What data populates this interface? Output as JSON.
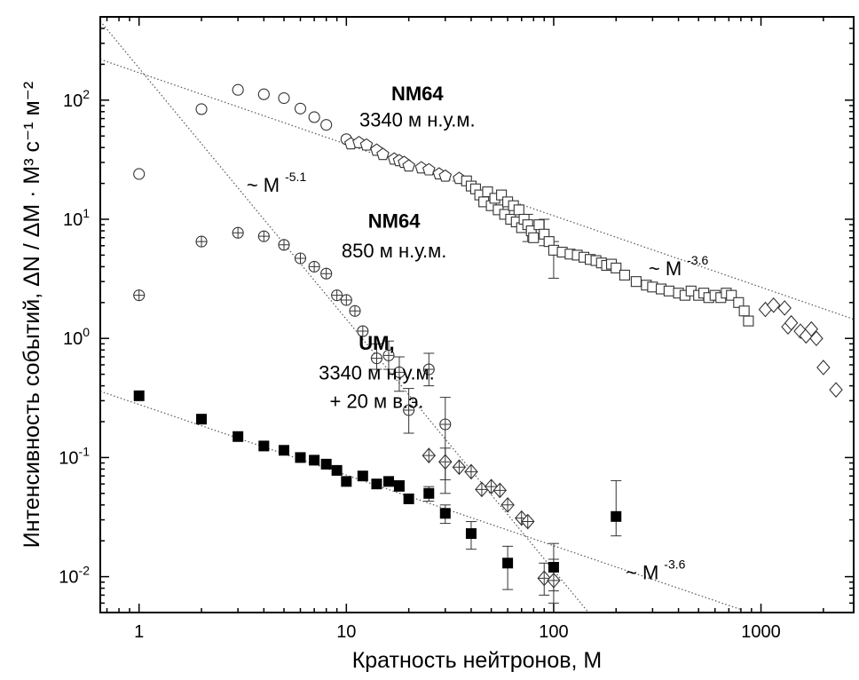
{
  "chart_data": {
    "type": "scatter",
    "title": "",
    "xlabel": "Кратность нейтронов,   M",
    "ylabel": "Интенсивность событий, ΔN / ΔM · M³ с⁻¹ м⁻²",
    "x_scale": "log",
    "y_scale": "log",
    "xlim": [
      0.65,
      2800
    ],
    "ylim": [
      0.005,
      500
    ],
    "grid": false,
    "x_ticks": [
      {
        "value": 1,
        "label": "1"
      },
      {
        "value": 10,
        "label": "10"
      },
      {
        "value": 100,
        "label": "100"
      },
      {
        "value": 1000,
        "label": "1000"
      }
    ],
    "y_ticks": [
      {
        "value": 100,
        "base": "10",
        "exp": "2"
      },
      {
        "value": 10,
        "base": "10",
        "exp": "1"
      },
      {
        "value": 1,
        "base": "10",
        "exp": "0"
      },
      {
        "value": 0.1,
        "base": "10",
        "exp": "-1"
      },
      {
        "value": 0.01,
        "base": "10",
        "exp": "-2"
      }
    ],
    "annotations": [
      {
        "id": "nm64-high-name",
        "text": "NM64",
        "bold": true,
        "x": 22,
        "y": 100
      },
      {
        "id": "nm64-high-alt",
        "text": "3340 м н.у.м.",
        "bold": false,
        "x": 22,
        "y": 60
      },
      {
        "id": "nm64-low-name",
        "text": "NM64",
        "bold": true,
        "x": 17,
        "y": 8.5
      },
      {
        "id": "nm64-low-alt",
        "text": "850 м н.у.м.",
        "bold": false,
        "x": 17,
        "y": 4.8
      },
      {
        "id": "um-name",
        "text": "UM,",
        "bold": true,
        "x": 14,
        "y": 0.8
      },
      {
        "id": "um-alt",
        "text": "3340 м  н.у.м.",
        "bold": false,
        "x": 14,
        "y": 0.45
      },
      {
        "id": "um-depth",
        "text": "+ 20 м в.э.",
        "bold": false,
        "x": 14,
        "y": 0.26
      }
    ],
    "power_labels": [
      {
        "id": "slope-51",
        "base": "~ M",
        "exp": "-5.1",
        "x": 4.6,
        "y": 17
      },
      {
        "id": "slope-36-upper",
        "base": "~ M",
        "exp": "-3.6",
        "x": 400,
        "y": 3.4
      },
      {
        "id": "slope-36-lower",
        "base": "~ M",
        "exp": "-3.6",
        "x": 310,
        "y": 0.0095
      }
    ],
    "fit_lines": [
      {
        "name": "",
        "x": [
          0.65,
          2800
        ],
        "y": [
          220,
          1.45
        ]
      },
      {
        "name": "",
        "x": [
          0.65,
          160
        ],
        "y": [
          460,
          0.0042
        ]
      },
      {
        "name": "",
        "x": [
          0.65,
          800
        ],
        "y": [
          0.36,
          0.0053
        ]
      }
    ],
    "series": [
      {
        "name": "",
        "marker": "circle-open",
        "x": [
          1,
          2,
          3,
          4,
          5,
          6,
          7,
          8,
          10
        ],
        "y": [
          24,
          84,
          122,
          112,
          104,
          85,
          72,
          62,
          47
        ],
        "yerr": []
      },
      {
        "name": "",
        "marker": "pentagon-open",
        "x": [
          10.5,
          11.5,
          12.5,
          14,
          15,
          17,
          18,
          19,
          20,
          23,
          25,
          28,
          30,
          35
        ],
        "y": [
          43,
          44,
          42,
          38,
          35,
          32,
          31,
          30,
          28,
          27,
          26,
          24,
          23,
          22
        ],
        "yerr": []
      },
      {
        "name": "",
        "marker": "square-open",
        "x": [
          38,
          40,
          42,
          44,
          46,
          48,
          50,
          52,
          54,
          56,
          58,
          60,
          62,
          64,
          66,
          68,
          70,
          72,
          75,
          78,
          80,
          85,
          90,
          95,
          100,
          110,
          120,
          130,
          140,
          150,
          160,
          170,
          180,
          190,
          200,
          220,
          250,
          280,
          300,
          330,
          360,
          400,
          430,
          460,
          500,
          530,
          560,
          600,
          640,
          680,
          720,
          780,
          830,
          870
        ],
        "y": [
          21,
          19,
          18,
          16,
          14,
          17,
          13,
          15,
          12,
          16,
          11,
          14,
          10,
          13,
          9.5,
          12,
          8.5,
          10,
          9,
          8,
          7,
          9,
          7.5,
          6.5,
          5.5,
          5.3,
          5.1,
          5,
          4.8,
          4.6,
          4.5,
          4.3,
          4.1,
          4.2,
          3.9,
          3.4,
          3.0,
          2.8,
          2.7,
          2.6,
          2.5,
          2.4,
          2.3,
          2.5,
          2.3,
          2.4,
          2.2,
          2.3,
          2.2,
          2.4,
          2.3,
          2.0,
          1.7,
          1.4
        ],
        "yerr": [
          {
            "x": 100,
            "lo": 3.2,
            "hi": 6.5
          },
          {
            "x": 75,
            "lo": 6.5,
            "hi": 11
          },
          {
            "x": 90,
            "lo": 6,
            "hi": 10
          }
        ]
      },
      {
        "name": "",
        "marker": "diamond-open",
        "x": [
          1050,
          1150,
          1300,
          1350,
          1400,
          1550,
          1650,
          1750,
          1850,
          2000,
          2300
        ],
        "y": [
          1.75,
          1.9,
          1.8,
          1.25,
          1.35,
          1.15,
          1.05,
          1.2,
          1.0,
          0.57,
          0.37
        ],
        "yerr": []
      },
      {
        "name": "",
        "marker": "circle-plus",
        "x": [
          1,
          2,
          3,
          4,
          5,
          6,
          7,
          8,
          9,
          10,
          11,
          12,
          14,
          16,
          18,
          20,
          25,
          30
        ],
        "y": [
          2.3,
          6.5,
          7.7,
          7.2,
          6.1,
          4.7,
          4.0,
          3.5,
          2.3,
          2.1,
          1.7,
          1.15,
          0.68,
          0.72,
          0.52,
          0.25,
          0.55,
          0.19
        ],
        "yerr": [
          {
            "x": 14,
            "lo": 0.55,
            "hi": 0.9
          },
          {
            "x": 16,
            "lo": 0.55,
            "hi": 0.95
          },
          {
            "x": 18,
            "lo": 0.36,
            "hi": 0.7
          },
          {
            "x": 20,
            "lo": 0.16,
            "hi": 0.38
          },
          {
            "x": 25,
            "lo": 0.4,
            "hi": 0.75
          },
          {
            "x": 30,
            "lo": 0.05,
            "hi": 0.32
          }
        ]
      },
      {
        "name": "",
        "marker": "diamond-plus",
        "x": [
          25,
          30,
          35,
          40,
          45,
          50,
          55,
          60,
          70,
          75,
          90,
          100
        ],
        "y": [
          0.104,
          0.092,
          0.083,
          0.076,
          0.054,
          0.057,
          0.053,
          0.04,
          0.031,
          0.029,
          0.0097,
          0.0093
        ],
        "yerr": [
          {
            "x": 90,
            "lo": 0.007,
            "hi": 0.013
          },
          {
            "x": 100,
            "lo": 0.006,
            "hi": 0.014
          },
          {
            "x": 30,
            "lo": 0.065,
            "hi": 0.12
          }
        ]
      },
      {
        "name": "",
        "marker": "square-filled",
        "x": [
          1,
          2,
          3,
          4,
          5,
          6,
          7,
          8,
          9,
          10,
          12,
          14,
          16,
          18,
          20,
          25,
          30,
          40,
          60,
          100,
          200
        ],
        "y": [
          0.33,
          0.21,
          0.15,
          0.125,
          0.115,
          0.1,
          0.095,
          0.088,
          0.078,
          0.063,
          0.07,
          0.06,
          0.063,
          0.058,
          0.045,
          0.05,
          0.034,
          0.023,
          0.013,
          0.012,
          0.032
        ],
        "yerr": [
          {
            "x": 40,
            "lo": 0.017,
            "hi": 0.029
          },
          {
            "x": 60,
            "lo": 0.0078,
            "hi": 0.018
          },
          {
            "x": 100,
            "lo": 0.0076,
            "hi": 0.019
          },
          {
            "x": 200,
            "lo": 0.022,
            "hi": 0.064
          },
          {
            "x": 30,
            "lo": 0.028,
            "hi": 0.04
          },
          {
            "x": 25,
            "lo": 0.043,
            "hi": 0.057
          },
          {
            "x": 18,
            "lo": 0.052,
            "hi": 0.064
          }
        ]
      }
    ]
  }
}
